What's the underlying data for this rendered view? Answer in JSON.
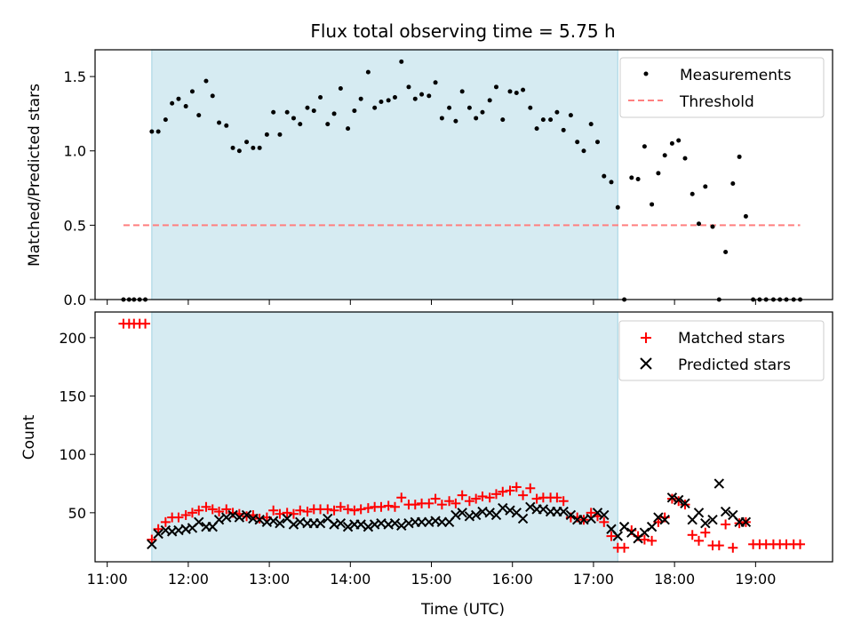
{
  "chart_data": [
    {
      "type": "scatter",
      "panel": "top",
      "title": "Flux total observing time = 5.75 h",
      "xlabel": "",
      "ylabel": "Matched/Predicted stars",
      "xlim": [
        10.85,
        19.95
      ],
      "ylim": [
        0,
        1.68
      ],
      "yticks": [
        0.0,
        0.5,
        1.0,
        1.5
      ],
      "ytick_labels": [
        "0.0",
        "0.5",
        "1.0",
        "1.5"
      ],
      "legend_position": "top-right",
      "grid": false,
      "shaded_interval": {
        "x": [
          11.55,
          17.3
        ],
        "color": "#add8e6"
      },
      "series": [
        {
          "name": "Measurements",
          "marker": "dot",
          "color": "#000000",
          "x": [
            11.2,
            11.27,
            11.33,
            11.4,
            11.47,
            11.55,
            11.63,
            11.72,
            11.8,
            11.88,
            11.97,
            12.05,
            12.13,
            12.22,
            12.3,
            12.38,
            12.47,
            12.55,
            12.63,
            12.72,
            12.8,
            12.88,
            12.97,
            13.05,
            13.13,
            13.22,
            13.3,
            13.38,
            13.47,
            13.55,
            13.63,
            13.72,
            13.8,
            13.88,
            13.97,
            14.05,
            14.13,
            14.22,
            14.3,
            14.38,
            14.47,
            14.55,
            14.63,
            14.72,
            14.8,
            14.88,
            14.97,
            15.05,
            15.13,
            15.22,
            15.3,
            15.38,
            15.47,
            15.55,
            15.63,
            15.72,
            15.8,
            15.88,
            15.97,
            16.05,
            16.13,
            16.22,
            16.3,
            16.38,
            16.47,
            16.55,
            16.63,
            16.72,
            16.8,
            16.88,
            16.97,
            17.05,
            17.13,
            17.22,
            17.3,
            17.38,
            17.47,
            17.55,
            17.63,
            17.72,
            17.8,
            17.88,
            17.97,
            18.05,
            18.13,
            18.22,
            18.3,
            18.38,
            18.47,
            18.55,
            18.63,
            18.72,
            18.8,
            18.88,
            18.97,
            19.05,
            19.13,
            19.22,
            19.3,
            19.38,
            19.47,
            19.55
          ],
          "y": [
            0,
            0,
            0,
            0,
            0,
            1.13,
            1.13,
            1.21,
            1.32,
            1.35,
            1.3,
            1.4,
            1.24,
            1.47,
            1.37,
            1.19,
            1.17,
            1.02,
            1.0,
            1.06,
            1.02,
            1.02,
            1.11,
            1.26,
            1.11,
            1.26,
            1.22,
            1.18,
            1.29,
            1.27,
            1.36,
            1.18,
            1.25,
            1.42,
            1.15,
            1.27,
            1.35,
            1.53,
            1.29,
            1.33,
            1.34,
            1.36,
            1.6,
            1.43,
            1.35,
            1.38,
            1.37,
            1.46,
            1.22,
            1.29,
            1.2,
            1.4,
            1.29,
            1.22,
            1.26,
            1.34,
            1.43,
            1.21,
            1.4,
            1.39,
            1.41,
            1.29,
            1.15,
            1.21,
            1.21,
            1.26,
            1.14,
            1.24,
            1.06,
            1.0,
            1.18,
            1.06,
            0.83,
            0.79,
            0.62,
            0,
            0.82,
            0.81,
            1.03,
            0.64,
            0.85,
            0.97,
            1.05,
            1.07,
            0.95,
            0.71,
            0.51,
            0.76,
            0.49,
            0,
            0.32,
            0.78,
            0.96,
            0.56,
            0,
            0,
            0,
            0,
            0,
            0,
            0,
            0
          ]
        },
        {
          "name": "Threshold",
          "line_style": "dashed",
          "color": "#ff7f7f",
          "x": [
            11.2,
            19.55
          ],
          "y": [
            0.5,
            0.5
          ]
        }
      ]
    },
    {
      "type": "scatter",
      "panel": "bottom",
      "title": "",
      "xlabel": "Time (UTC)",
      "ylabel": "Count",
      "xlim": [
        10.85,
        19.95
      ],
      "ylim": [
        8,
        222
      ],
      "yticks": [
        50,
        100,
        150,
        200
      ],
      "ytick_labels": [
        "50",
        "100",
        "150",
        "200"
      ],
      "xticks": [
        11,
        12,
        13,
        14,
        15,
        16,
        17,
        18,
        19
      ],
      "xtick_labels": [
        "11:00",
        "12:00",
        "13:00",
        "14:00",
        "15:00",
        "16:00",
        "17:00",
        "18:00",
        "19:00"
      ],
      "legend_position": "top-right",
      "grid": false,
      "shaded_interval": {
        "x": [
          11.55,
          17.3
        ],
        "color": "#add8e6"
      },
      "series": [
        {
          "name": "Matched stars",
          "marker": "plus",
          "color": "#ff0000",
          "x": [
            11.2,
            11.27,
            11.33,
            11.4,
            11.47,
            11.55,
            11.63,
            11.72,
            11.8,
            11.88,
            11.97,
            12.05,
            12.13,
            12.22,
            12.3,
            12.38,
            12.47,
            12.55,
            12.63,
            12.72,
            12.8,
            12.88,
            12.97,
            13.05,
            13.13,
            13.22,
            13.3,
            13.38,
            13.47,
            13.55,
            13.63,
            13.72,
            13.8,
            13.88,
            13.97,
            14.05,
            14.13,
            14.22,
            14.3,
            14.38,
            14.47,
            14.55,
            14.63,
            14.72,
            14.8,
            14.88,
            14.97,
            15.05,
            15.13,
            15.22,
            15.3,
            15.38,
            15.47,
            15.55,
            15.63,
            15.72,
            15.8,
            15.88,
            15.97,
            16.05,
            16.13,
            16.22,
            16.3,
            16.38,
            16.47,
            16.55,
            16.63,
            16.72,
            16.8,
            16.88,
            16.97,
            17.05,
            17.13,
            17.22,
            17.3,
            17.38,
            17.47,
            17.55,
            17.63,
            17.72,
            17.8,
            17.88,
            17.97,
            18.05,
            18.13,
            18.22,
            18.3,
            18.38,
            18.47,
            18.55,
            18.63,
            18.72,
            18.8,
            18.88,
            18.97,
            19.05,
            19.13,
            19.22,
            19.3,
            19.38,
            19.47,
            19.55
          ],
          "y": [
            212,
            212,
            212,
            212,
            212,
            27,
            36,
            42,
            46,
            46,
            48,
            50,
            52,
            55,
            53,
            51,
            53,
            50,
            49,
            47,
            48,
            45,
            46,
            52,
            49,
            50,
            49,
            52,
            51,
            53,
            53,
            53,
            52,
            55,
            53,
            52,
            53,
            54,
            55,
            55,
            56,
            55,
            63,
            57,
            57,
            58,
            58,
            62,
            57,
            60,
            58,
            65,
            60,
            62,
            64,
            63,
            66,
            68,
            69,
            72,
            65,
            71,
            62,
            63,
            63,
            63,
            60,
            46,
            46,
            44,
            50,
            47,
            42,
            30,
            20,
            20,
            35,
            30,
            27,
            26,
            42,
            46,
            62,
            60,
            57,
            31,
            26,
            33,
            22,
            22,
            40,
            20,
            41,
            42,
            23,
            23,
            23,
            23,
            23,
            23,
            23,
            23
          ]
        },
        {
          "name": "Predicted stars",
          "marker": "x",
          "color": "#000000",
          "x": [
            11.55,
            11.63,
            11.72,
            11.8,
            11.88,
            11.97,
            12.05,
            12.13,
            12.22,
            12.3,
            12.38,
            12.47,
            12.55,
            12.63,
            12.72,
            12.8,
            12.88,
            12.97,
            13.05,
            13.13,
            13.22,
            13.3,
            13.38,
            13.47,
            13.55,
            13.63,
            13.72,
            13.8,
            13.88,
            13.97,
            14.05,
            14.13,
            14.22,
            14.3,
            14.38,
            14.47,
            14.55,
            14.63,
            14.72,
            14.8,
            14.88,
            14.97,
            15.05,
            15.13,
            15.22,
            15.3,
            15.38,
            15.47,
            15.55,
            15.63,
            15.72,
            15.8,
            15.88,
            15.97,
            16.05,
            16.13,
            16.22,
            16.3,
            16.38,
            16.47,
            16.55,
            16.63,
            16.72,
            16.8,
            16.88,
            16.97,
            17.05,
            17.13,
            17.22,
            17.3,
            17.38,
            17.47,
            17.55,
            17.63,
            17.72,
            17.8,
            17.88,
            17.97,
            18.05,
            18.13,
            18.22,
            18.3,
            18.38,
            18.47,
            18.55,
            18.63,
            18.72,
            18.8,
            18.88
          ],
          "y": [
            23,
            32,
            35,
            34,
            35,
            36,
            37,
            42,
            38,
            38,
            44,
            46,
            48,
            46,
            48,
            45,
            44,
            42,
            43,
            41,
            45,
            40,
            42,
            41,
            41,
            41,
            45,
            40,
            41,
            38,
            40,
            40,
            38,
            40,
            41,
            40,
            41,
            39,
            41,
            42,
            42,
            42,
            43,
            42,
            42,
            48,
            50,
            47,
            48,
            51,
            50,
            48,
            54,
            52,
            50,
            45,
            55,
            53,
            53,
            51,
            51,
            51,
            48,
            44,
            44,
            45,
            50,
            48,
            36,
            30,
            38,
            33,
            28,
            33,
            38,
            46,
            44,
            63,
            61,
            58,
            44,
            50,
            41,
            44,
            75,
            51,
            48,
            42,
            42
          ]
        }
      ]
    }
  ]
}
